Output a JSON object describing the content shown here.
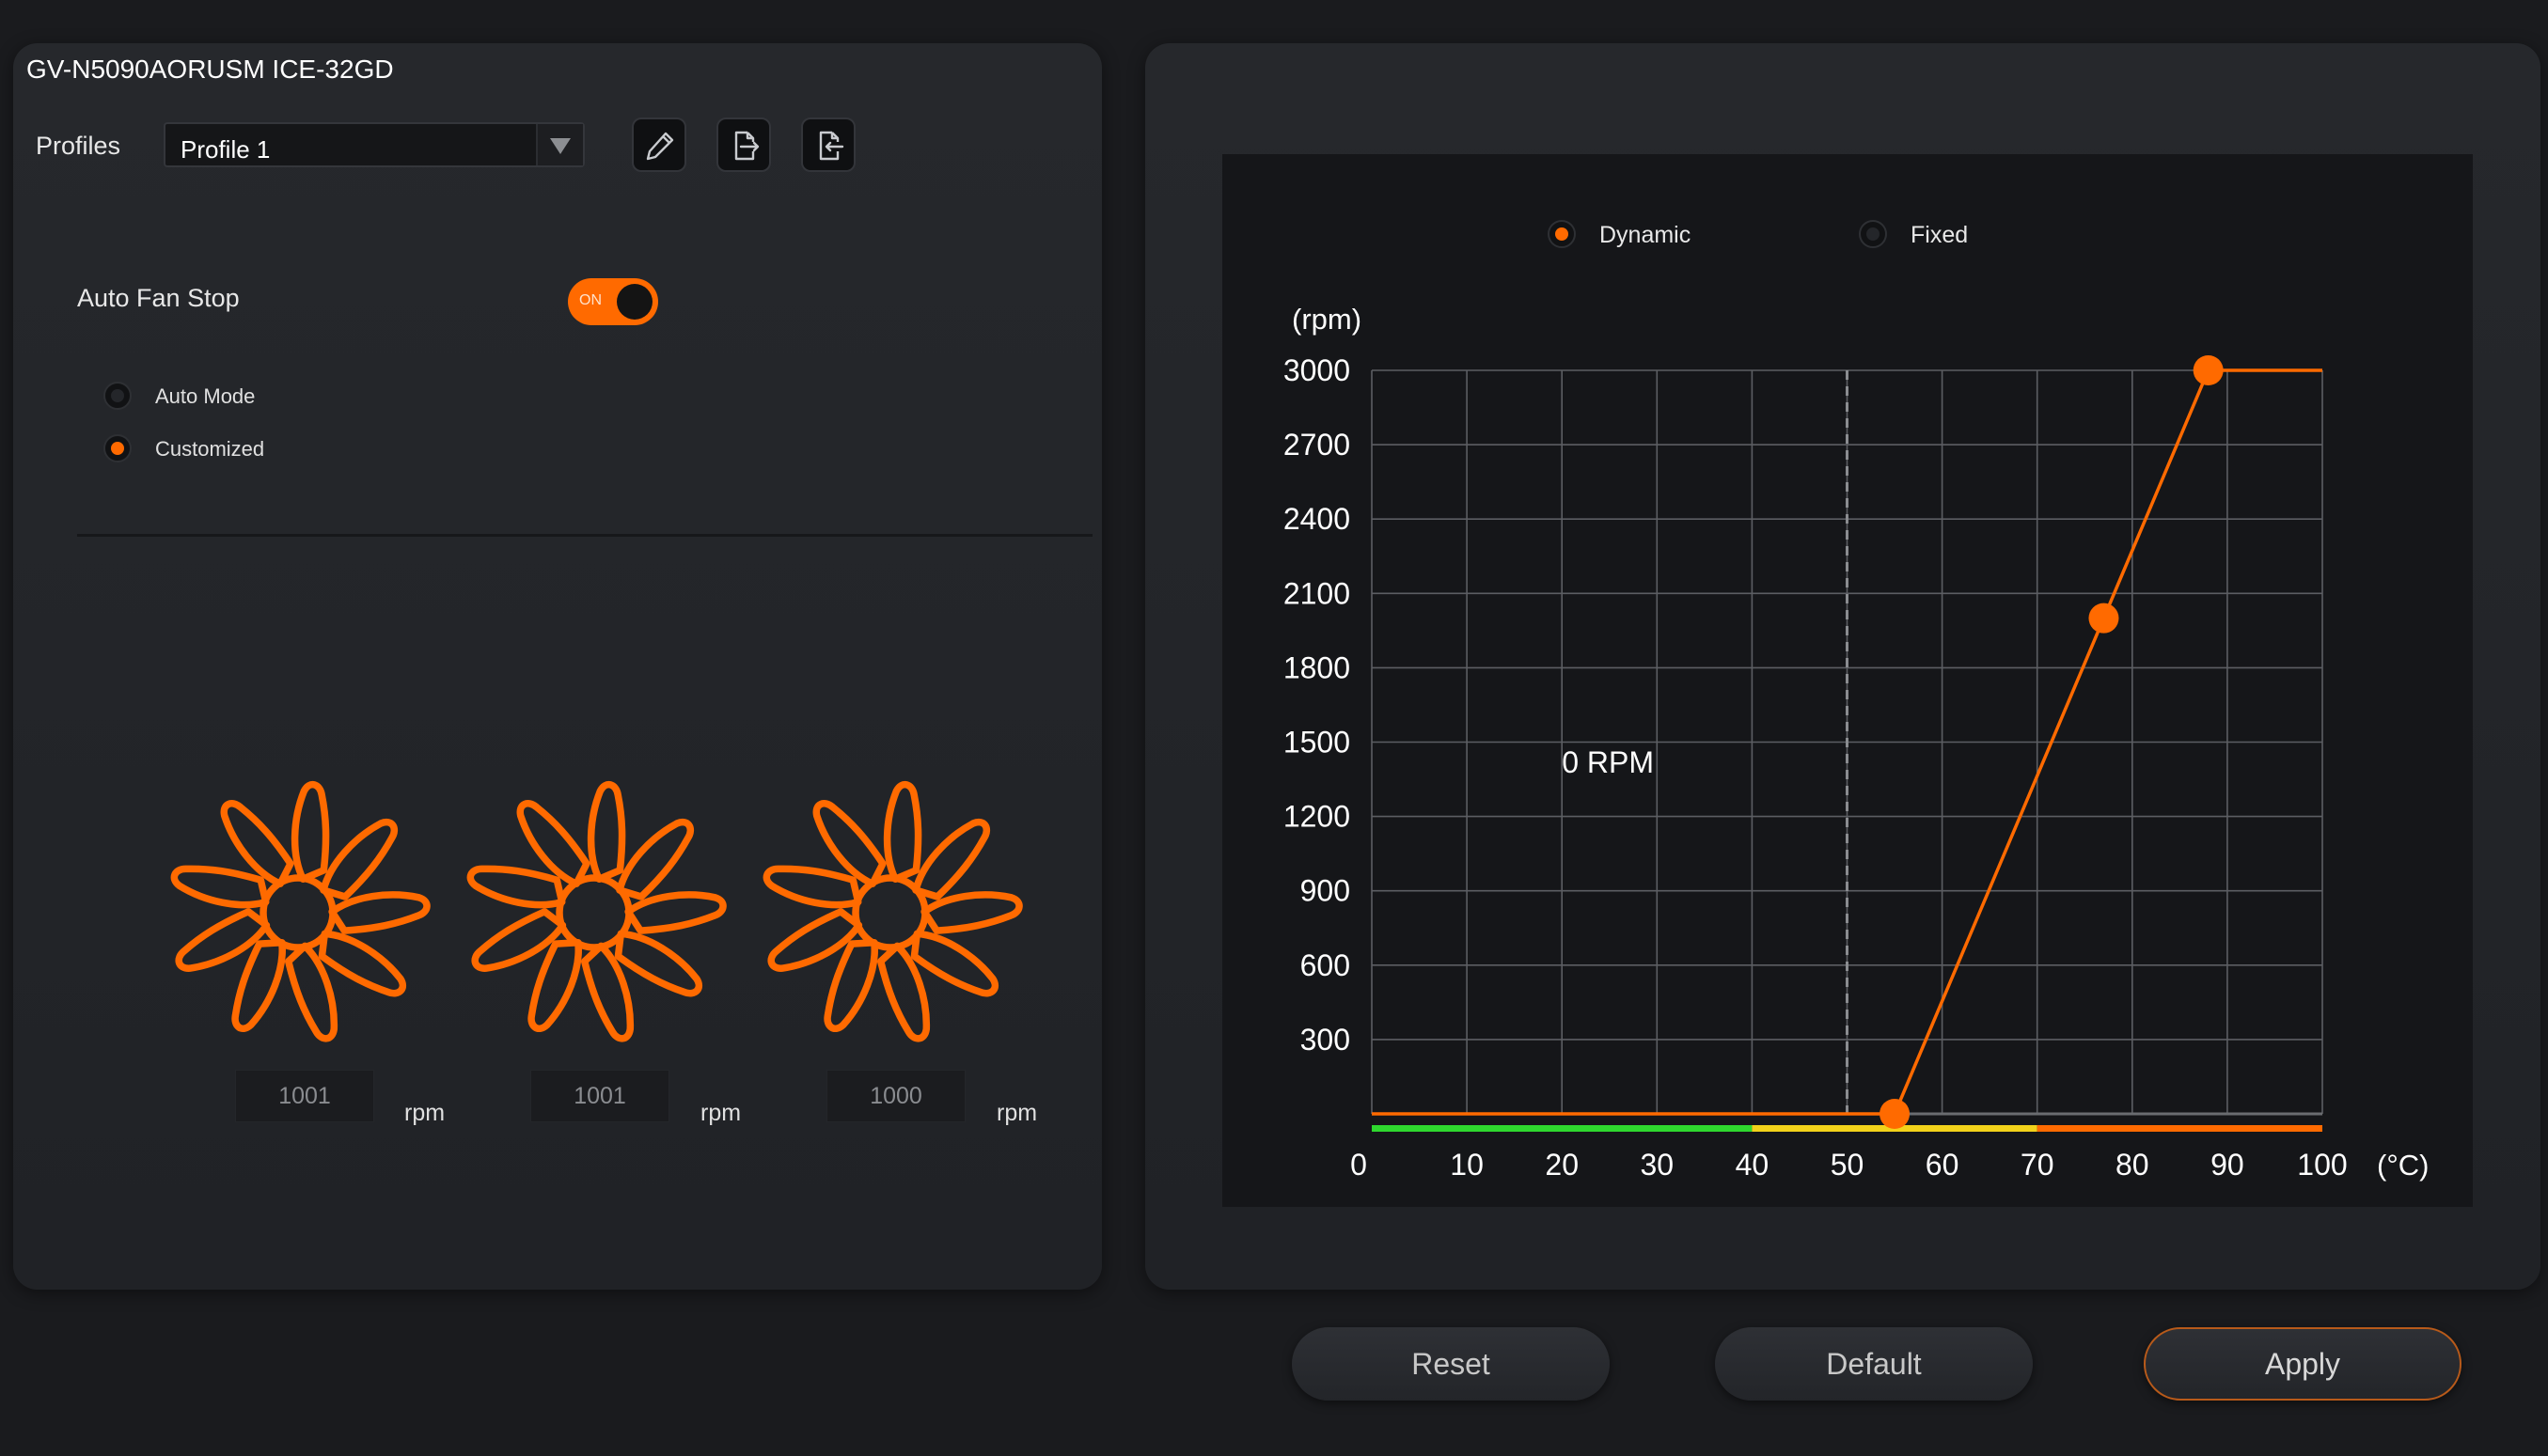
{
  "device": {
    "name": "GV-N5090AORUSM ICE-32GD"
  },
  "profiles": {
    "label": "Profiles",
    "selected": "Profile 1",
    "icons": [
      "edit-icon",
      "export-icon",
      "import-icon"
    ]
  },
  "auto_fan_stop": {
    "label": "Auto Fan Stop",
    "toggle_text": "ON",
    "enabled": true,
    "modes": [
      {
        "label": "Auto Mode",
        "selected": false
      },
      {
        "label": "Customized",
        "selected": true
      }
    ]
  },
  "fans": [
    {
      "rpm": "1001",
      "unit": "rpm"
    },
    {
      "rpm": "1001",
      "unit": "rpm"
    },
    {
      "rpm": "1000",
      "unit": "rpm"
    }
  ],
  "curve_mode": {
    "options": [
      {
        "label": "Dynamic",
        "selected": true
      },
      {
        "label": "Fixed",
        "selected": false
      }
    ]
  },
  "chart_data": {
    "type": "line",
    "ylabel": "(rpm)",
    "xlabel": "(°C)",
    "xlim": [
      0,
      100
    ],
    "ylim": [
      0,
      3000
    ],
    "x_ticks": [
      0,
      10,
      20,
      30,
      40,
      50,
      60,
      70,
      80,
      90,
      100
    ],
    "y_ticks": [
      300,
      600,
      900,
      1200,
      1500,
      1800,
      2100,
      2400,
      2700,
      3000
    ],
    "grid": true,
    "annotation": "0 RPM",
    "threshold_x": 50,
    "series": [
      {
        "x": [
          0,
          55,
          77,
          88,
          100
        ],
        "y": [
          0,
          0,
          2000,
          3000,
          3000
        ]
      }
    ],
    "control_points": [
      {
        "x": 55,
        "y": 0
      },
      {
        "x": 77,
        "y": 2000
      },
      {
        "x": 88,
        "y": 3000
      }
    ],
    "temperature_bands": [
      {
        "from": 0,
        "to": 40,
        "color": "#2ed82e"
      },
      {
        "from": 40,
        "to": 70,
        "color": "#f2d21a"
      },
      {
        "from": 70,
        "to": 100,
        "color": "#ff6a00"
      }
    ],
    "colors": {
      "curve": "#ff6a00",
      "grid": "#5c5e63",
      "threshold": "#8a8c90",
      "zero_line": "#6a6c70"
    }
  },
  "buttons": {
    "reset": "Reset",
    "default": "Default",
    "apply": "Apply"
  },
  "colors": {
    "accent": "#ff6a00",
    "panel": "#23252a",
    "background": "#1a1b1e"
  }
}
